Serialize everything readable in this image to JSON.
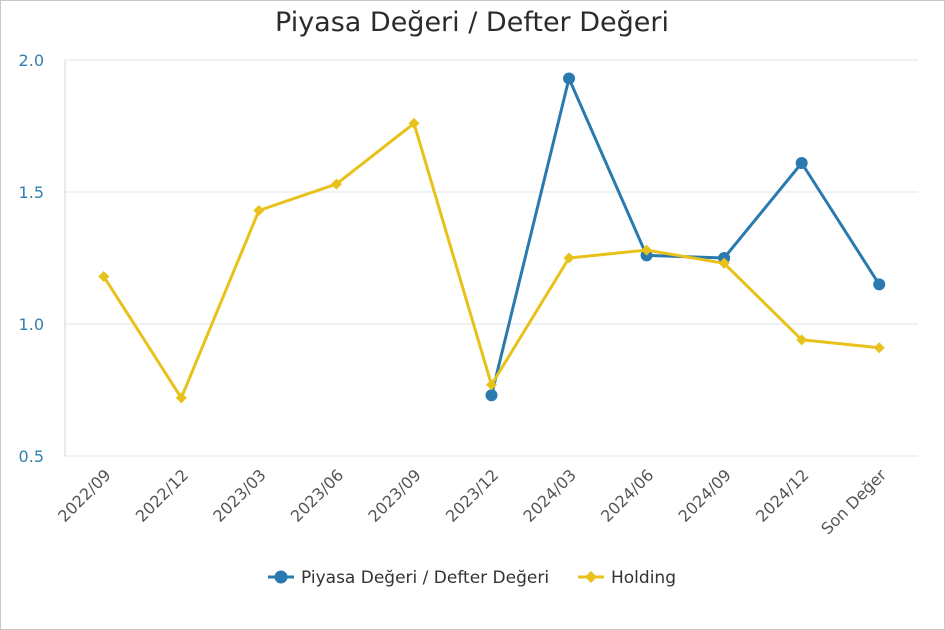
{
  "chart_data": {
    "type": "line",
    "title": "Piyasa Değeri / Defter Değeri",
    "xlabel": "",
    "ylabel": "",
    "categories": [
      "2022/09",
      "2022/12",
      "2023/03",
      "2023/06",
      "2023/09",
      "2023/12",
      "2024/03",
      "2024/06",
      "2024/09",
      "2024/12",
      "Son Değer"
    ],
    "ylim": [
      0.5,
      2.0
    ],
    "yticks": [
      "0.5",
      "1.0",
      "1.5",
      "2.0"
    ],
    "series": [
      {
        "name": "Piyasa Değeri / Defter Değeri",
        "color": "#2a7ab0",
        "marker": "circle",
        "values": [
          null,
          null,
          null,
          null,
          null,
          0.73,
          1.93,
          1.26,
          1.25,
          1.61,
          1.15
        ]
      },
      {
        "name": "Holding",
        "color": "#e8c21a",
        "marker": "diamond",
        "values": [
          1.18,
          0.72,
          1.43,
          1.53,
          1.76,
          0.77,
          1.25,
          1.28,
          1.23,
          0.94,
          0.91
        ]
      }
    ],
    "grid": true,
    "legend_position": "bottom"
  }
}
